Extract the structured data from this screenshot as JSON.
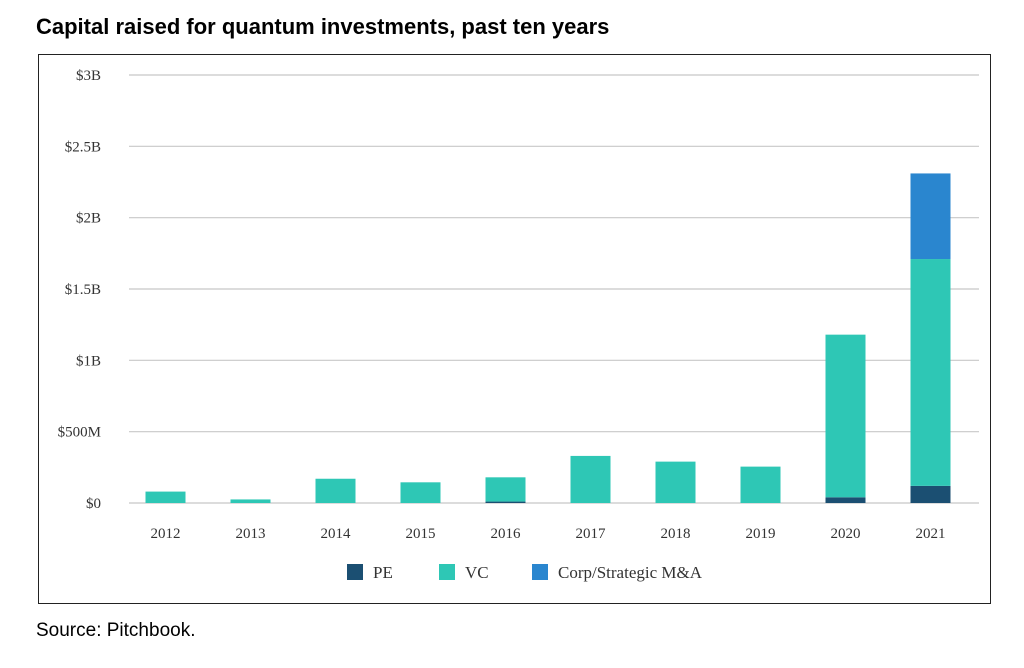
{
  "title": "Capital raised for quantum investments, past ten years",
  "source": "Source: Pitchbook.",
  "chart_data": {
    "type": "bar",
    "stacked": true,
    "categories": [
      "2012",
      "2013",
      "2014",
      "2015",
      "2016",
      "2017",
      "2018",
      "2019",
      "2020",
      "2021"
    ],
    "series": [
      {
        "name": "PE",
        "color": "#1b4f72",
        "values": [
          0,
          0,
          0,
          0,
          10,
          0,
          0,
          0,
          40,
          120
        ]
      },
      {
        "name": "VC",
        "color": "#2ec7b5",
        "values": [
          80,
          25,
          170,
          145,
          170,
          330,
          290,
          255,
          1140,
          1590
        ]
      },
      {
        "name": "Corp/Strategic M&A",
        "color": "#2a86cf",
        "values": [
          0,
          0,
          0,
          0,
          0,
          0,
          0,
          0,
          0,
          600
        ]
      }
    ],
    "yticks": [
      {
        "value": 0,
        "label": "$0"
      },
      {
        "value": 500,
        "label": "$500M"
      },
      {
        "value": 1000,
        "label": "$1B"
      },
      {
        "value": 1500,
        "label": "$1.5B"
      },
      {
        "value": 2000,
        "label": "$2B"
      },
      {
        "value": 2500,
        "label": "$2.5B"
      },
      {
        "value": 3000,
        "label": "$3B"
      }
    ],
    "ylim": [
      0,
      3000
    ],
    "grid": true,
    "legend_position": "bottom"
  }
}
